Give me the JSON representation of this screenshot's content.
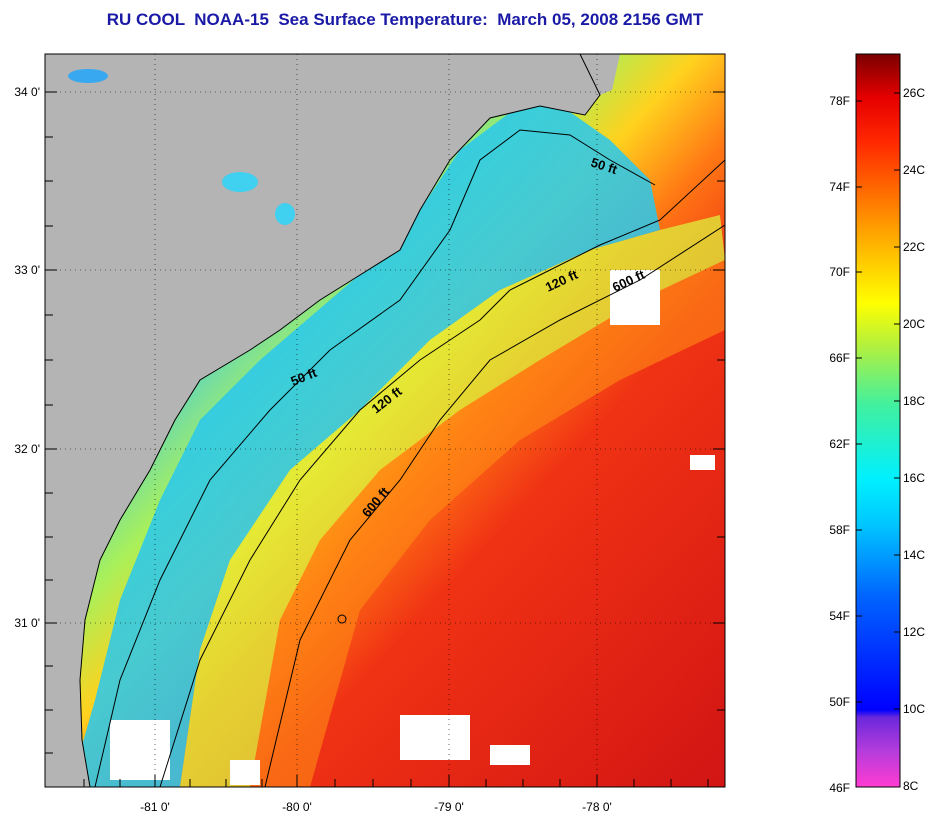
{
  "title": "RU COOL  NOAA-15  Sea Surface Temperature:  March 05, 2008 2156 GMT",
  "map": {
    "lon_ticks": [
      "-81 0'",
      "-80 0'",
      "-79 0'",
      "-78 0'"
    ],
    "lat_ticks": [
      "34 0'",
      "33 0'",
      "32 0'",
      "31 0'"
    ],
    "lon_range": [
      -81.7,
      -77.2
    ],
    "lat_range": [
      30.2,
      34.2
    ],
    "land_color": "#b4b4b4",
    "contours": [
      {
        "label": "50 ft"
      },
      {
        "label": "50 ft"
      },
      {
        "label": "120 ft"
      },
      {
        "label": "120 ft"
      },
      {
        "label": "600 ft"
      },
      {
        "label": "600 ft"
      }
    ]
  },
  "colorbar": {
    "fahrenheit_labels": [
      "78F",
      "74F",
      "70F",
      "66F",
      "62F",
      "58F",
      "54F",
      "50F",
      "46F"
    ],
    "celsius_labels": [
      "26C",
      "24C",
      "22C",
      "20C",
      "18C",
      "16C",
      "14C",
      "12C",
      "10C",
      "8C"
    ],
    "range_c": [
      8,
      27
    ]
  }
}
